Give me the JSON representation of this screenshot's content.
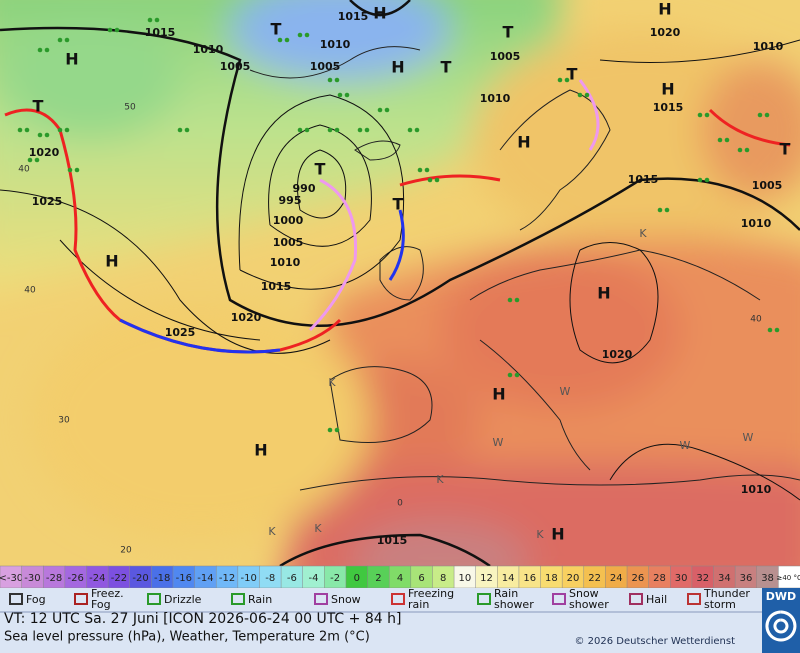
{
  "map": {
    "pressure_labels": [
      "1015",
      "1010",
      "1005",
      "1015",
      "1010",
      "1005",
      "1005",
      "1010",
      "1020",
      "1010",
      "1015",
      "1020",
      "1025",
      "990",
      "995",
      "1000",
      "1005",
      "1010",
      "1015",
      "1020",
      "1025",
      "1015",
      "1005",
      "1010",
      "1020",
      "1010",
      "1015"
    ],
    "centers": [
      "H",
      "T",
      "H",
      "H",
      "T",
      "T",
      "T",
      "T",
      "T",
      "H",
      "H",
      "H",
      "H",
      "H",
      "H",
      "H",
      "H",
      "T",
      "T"
    ],
    "isotherm_labels": [
      "50",
      "40",
      "40",
      "30",
      "20",
      "0",
      "40"
    ],
    "symbol_letters": [
      "K",
      "K",
      "K",
      "K",
      "K",
      "K",
      "W",
      "W",
      "W",
      "W"
    ]
  },
  "colorbar": {
    "labels": [
      "<-30",
      "-30",
      "-28",
      "-26",
      "-24",
      "-22",
      "-20",
      "-18",
      "-16",
      "-14",
      "-12",
      "-10",
      "-8",
      "-6",
      "-4",
      "-2",
      "0",
      "2",
      "4",
      "6",
      "8",
      "10",
      "12",
      "14",
      "16",
      "18",
      "20",
      "22",
      "24",
      "26",
      "28",
      "30",
      "32",
      "34",
      "36",
      "38",
      "≥40 °C"
    ],
    "colors": [
      "#d8a0e0",
      "#c88ad8",
      "#b878dc",
      "#a468e0",
      "#9058e0",
      "#7c50e0",
      "#5a58e0",
      "#4a70e8",
      "#5088f0",
      "#60a0f4",
      "#70b8f8",
      "#80ccf8",
      "#90dcf4",
      "#98e8e4",
      "#a0f0d0",
      "#88e8a8",
      "#40c840",
      "#58d058",
      "#80dc68",
      "#a8e478",
      "#c8ec88",
      "#f8f8e8",
      "#f8f4c0",
      "#f8eca0",
      "#f8e488",
      "#f8dc70",
      "#f8d060",
      "#f4c050",
      "#f0ac48",
      "#ec9450",
      "#e88060",
      "#e06a68",
      "#d86068",
      "#d07070",
      "#c88080",
      "#b89090",
      "#ffffff"
    ]
  },
  "legend": {
    "items": [
      [
        "Fog"
      ],
      [
        "Freez.",
        "Fog"
      ],
      [
        "Drizzle"
      ],
      [
        "Rain"
      ],
      [
        "Snow"
      ],
      [
        "Freezing",
        "rain"
      ],
      [
        "Rain",
        "shower"
      ],
      [
        "Snow",
        "shower"
      ],
      [
        "Hail"
      ],
      [
        "Thunder",
        "storm"
      ]
    ]
  },
  "footer": {
    "valid_time": "VT: 12 UTC Sa.  27 Juni [ICON 2026-06-24  00 UTC + 84 h]",
    "description": "Sea level pressure (hPa), Weather, Temperature 2m (°C)",
    "copyright": "© 2026 Deutscher Wetterdienst",
    "logo": "DWD"
  }
}
